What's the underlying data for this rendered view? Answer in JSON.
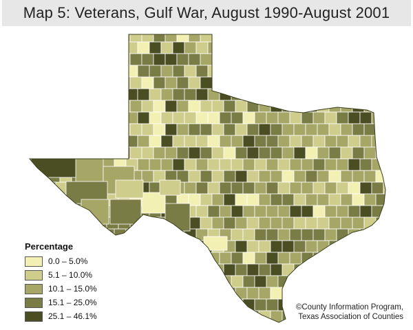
{
  "title": "Map 5: Veterans, Gulf War, August 1990-August 2001",
  "legend": {
    "title": "Percentage",
    "items": [
      {
        "label": "0.0 – 5.0%",
        "color": "#f3f0b4"
      },
      {
        "label": "5.1 – 10.0%",
        "color": "#cfcd8c"
      },
      {
        "label": "10.1 – 15.0%",
        "color": "#a6a767"
      },
      {
        "label": "15.1 – 25.0%",
        "color": "#7a7c45"
      },
      {
        "label": "25.1 – 46.1%",
        "color": "#4b4e23"
      }
    ]
  },
  "credit": {
    "line1": "©County Information Program,",
    "line2": "Texas Association of Counties"
  },
  "colors": {
    "county_border": "#ffffff",
    "title_background": "#e7e7e7"
  }
}
